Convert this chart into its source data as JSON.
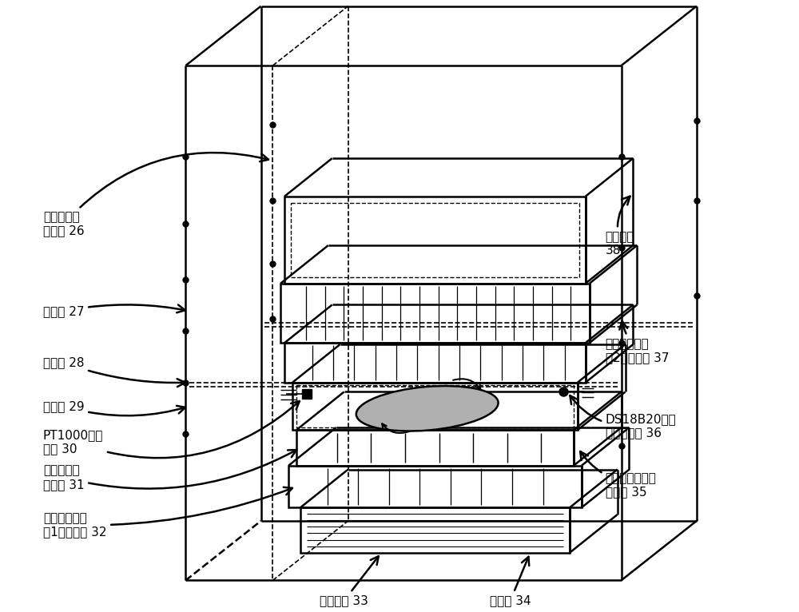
{
  "bg_color": "#ffffff",
  "lc": "#000000",
  "fig_w": 10.0,
  "fig_h": 7.66,
  "font_size": 10,
  "labels": {
    "l26": "可变容积安\n装支架 26",
    "l27": "散热片 27",
    "l28": "隔热板 28",
    "l29": "保温棉 29",
    "l30": "PT1000热敏\n电阻 30",
    "l31": "柔性蛇形热\n敏电阻 31",
    "l32": "半导体制冷片\n（1）发热面 32",
    "l33": "导冷风扇 33",
    "l34": "导冷片 34",
    "l35": "热释电能量收集\n器样品 35",
    "l36": "DS18B20数字\n温度传感器 36",
    "l37": "半导体制冷片\n（2）致冷面 37",
    "l38": "散热风扇\n38"
  },
  "gray": "#b0b0b0"
}
